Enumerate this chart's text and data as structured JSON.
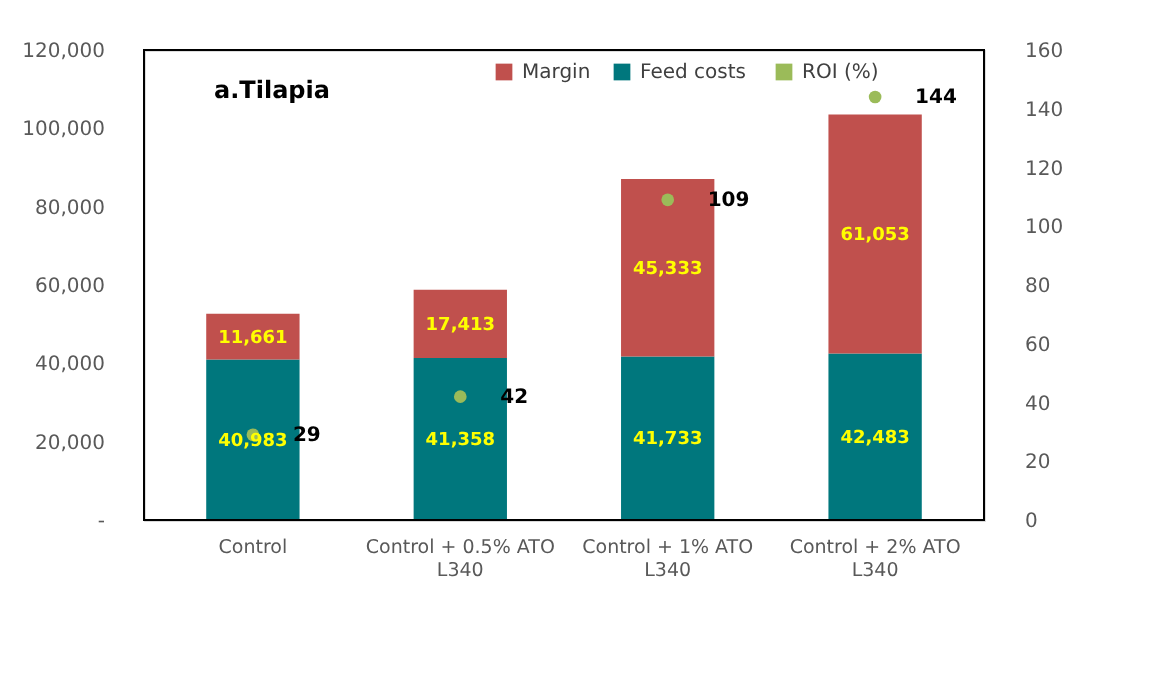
{
  "chart_data": {
    "type": "bar",
    "title": "a.Tilapia",
    "categories": [
      "Control",
      "Control + 0.5% ATO L340",
      "Control + 1% ATO L340",
      "Control + 2% ATO L340"
    ],
    "stacked": true,
    "series": [
      {
        "name": "Feed costs",
        "color": "#00777d",
        "values": [
          40983,
          41358,
          41733,
          42483
        ],
        "value_labels": [
          "40,983",
          "41,358",
          "41,733",
          "42,483"
        ]
      },
      {
        "name": "Margin",
        "color": "#c0504d",
        "values": [
          11661,
          17413,
          45333,
          61053
        ],
        "value_labels": [
          "11,661",
          "17,413",
          "45,333",
          "61,053"
        ]
      },
      {
        "name": "ROI (%)",
        "type": "scatter",
        "axis": "y2",
        "color": "#9bbb59",
        "values": [
          29,
          42,
          109,
          144
        ],
        "value_labels": [
          "29",
          "42",
          "109",
          "144"
        ]
      }
    ],
    "ylim": [
      0,
      120000
    ],
    "yticks": [
      {
        "value": 0,
        "label": "-"
      },
      {
        "value": 20000,
        "label": "20,000"
      },
      {
        "value": 40000,
        "label": "40,000"
      },
      {
        "value": 60000,
        "label": "60,000"
      },
      {
        "value": 80000,
        "label": "80,000"
      },
      {
        "value": 100000,
        "label": "100,000"
      },
      {
        "value": 120000,
        "label": "120,000"
      }
    ],
    "y2lim": [
      0,
      160
    ],
    "y2ticks": [
      0,
      20,
      40,
      60,
      80,
      100,
      120,
      140,
      160
    ],
    "legend": "top",
    "marker": "circle",
    "grid": false
  }
}
